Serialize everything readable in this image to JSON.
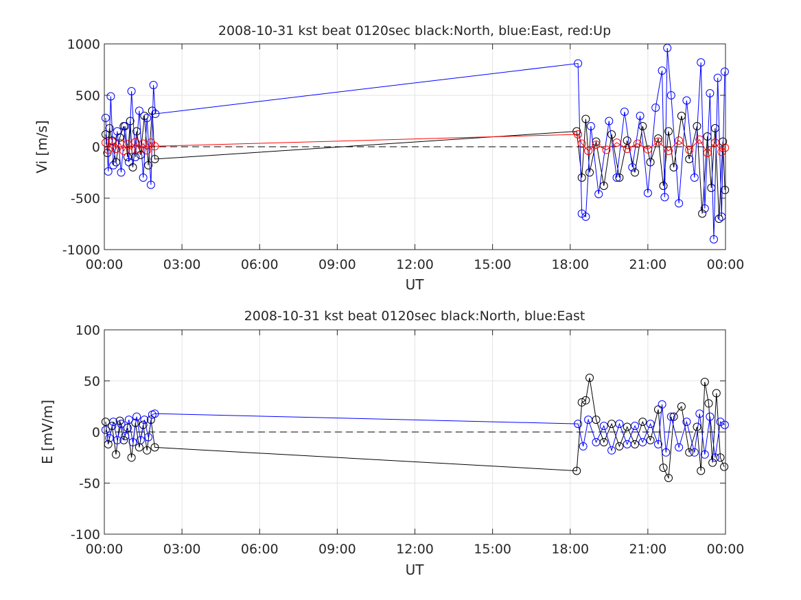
{
  "chart_data": [
    {
      "type": "scatter",
      "title": "2008-10-31 kst beat 0120sec black:North, blue:East, red:Up",
      "xlabel": "UT",
      "ylabel": "Vi [m/s]",
      "xlim_hours": [
        0,
        24
      ],
      "ylim": [
        -1000,
        1000
      ],
      "xticks": [
        0,
        3,
        6,
        9,
        12,
        15,
        18,
        21,
        24
      ],
      "xtick_labels": [
        "00:00",
        "03:00",
        "06:00",
        "09:00",
        "12:00",
        "15:00",
        "18:00",
        "21:00",
        "00:00"
      ],
      "yticks": [
        -1000,
        -500,
        0,
        500,
        1000
      ],
      "ytick_labels": [
        "-1000",
        "-500",
        "0",
        "500",
        "1000"
      ],
      "grid": true,
      "zero_line": "dashed",
      "series": [
        {
          "color": "#000000",
          "markers": "circle",
          "x_hours": [
            0.05,
            0.12,
            0.2,
            0.3,
            0.45,
            0.6,
            0.75,
            0.9,
            1.0,
            1.1,
            1.25,
            1.4,
            1.55,
            1.7,
            1.85,
            1.95,
            18.25,
            18.45,
            18.6,
            18.75,
            19.0,
            19.3,
            19.6,
            19.9,
            20.2,
            20.5,
            20.8,
            21.1,
            21.4,
            21.6,
            21.8,
            22.0,
            22.3,
            22.6,
            22.9,
            23.1,
            23.3,
            23.45,
            23.6,
            23.75,
            23.9,
            23.98
          ],
          "values": [
            120,
            -60,
            180,
            60,
            -150,
            90,
            200,
            -100,
            250,
            -200,
            150,
            -80,
            300,
            -180,
            350,
            -120,
            150,
            -300,
            270,
            -250,
            50,
            -380,
            120,
            -300,
            60,
            -250,
            200,
            -150,
            80,
            -380,
            150,
            -200,
            300,
            -120,
            200,
            -650,
            100,
            -400,
            180,
            -700,
            50,
            -420
          ]
        },
        {
          "color": "#0000ff",
          "markers": "circle",
          "x_hours": [
            0.05,
            0.15,
            0.25,
            0.35,
            0.5,
            0.65,
            0.8,
            0.95,
            1.05,
            1.2,
            1.35,
            1.5,
            1.65,
            1.8,
            1.9,
            1.97,
            18.3,
            18.45,
            18.6,
            18.8,
            19.1,
            19.5,
            19.8,
            20.1,
            20.4,
            20.7,
            21.0,
            21.3,
            21.55,
            21.65,
            21.75,
            21.9,
            22.2,
            22.5,
            22.8,
            23.05,
            23.2,
            23.4,
            23.55,
            23.7,
            23.85,
            23.97
          ],
          "values": [
            280,
            -240,
            490,
            -180,
            150,
            -250,
            200,
            -150,
            540,
            -100,
            350,
            -300,
            280,
            -370,
            600,
            320,
            810,
            -650,
            -680,
            200,
            -460,
            250,
            -300,
            340,
            -200,
            300,
            -450,
            380,
            740,
            -490,
            960,
            500,
            -550,
            450,
            -300,
            820,
            -600,
            520,
            -900,
            670,
            -680,
            730
          ]
        },
        {
          "color": "#ff0000",
          "markers": "circle",
          "x_hours": [
            0.05,
            0.15,
            0.3,
            0.45,
            0.6,
            0.75,
            0.9,
            1.05,
            1.2,
            1.35,
            1.5,
            1.65,
            1.8,
            1.95,
            18.3,
            18.45,
            18.7,
            19.0,
            19.4,
            19.8,
            20.2,
            20.6,
            21.0,
            21.4,
            21.8,
            22.2,
            22.6,
            23.0,
            23.3,
            23.6,
            23.85,
            23.98
          ],
          "values": [
            40,
            -30,
            50,
            -20,
            35,
            -40,
            25,
            -30,
            45,
            -25,
            30,
            -35,
            40,
            5,
            120,
            30,
            -40,
            20,
            -30,
            40,
            -20,
            30,
            -25,
            50,
            -40,
            60,
            -30,
            70,
            -60,
            40,
            -50,
            -10
          ]
        }
      ]
    },
    {
      "type": "scatter",
      "title": "2008-10-31 kst beat 0120sec black:North, blue:East",
      "xlabel": "UT",
      "ylabel": "E [mV/m]",
      "xlim_hours": [
        0,
        24
      ],
      "ylim": [
        -100,
        100
      ],
      "xticks": [
        0,
        3,
        6,
        9,
        12,
        15,
        18,
        21,
        24
      ],
      "xtick_labels": [
        "00:00",
        "03:00",
        "06:00",
        "09:00",
        "12:00",
        "15:00",
        "18:00",
        "21:00",
        "00:00"
      ],
      "yticks": [
        -100,
        -50,
        0,
        50,
        100
      ],
      "ytick_labels": [
        "-100",
        "-50",
        "0",
        "50",
        "100"
      ],
      "grid": true,
      "zero_line": "dashed",
      "series": [
        {
          "color": "#000000",
          "markers": "circle",
          "x_hours": [
            0.05,
            0.15,
            0.3,
            0.45,
            0.6,
            0.75,
            0.9,
            1.05,
            1.2,
            1.35,
            1.5,
            1.65,
            1.8,
            1.95,
            18.25,
            18.45,
            18.6,
            18.75,
            19.0,
            19.3,
            19.6,
            19.9,
            20.2,
            20.5,
            20.8,
            21.1,
            21.4,
            21.6,
            21.8,
            22.0,
            22.3,
            22.6,
            22.9,
            23.05,
            23.2,
            23.35,
            23.5,
            23.65,
            23.8,
            23.95
          ],
          "values": [
            10,
            -12,
            6,
            -22,
            11,
            -8,
            4,
            -25,
            9,
            -15,
            7,
            -18,
            12,
            -15,
            -38,
            29,
            31,
            53,
            12,
            -10,
            8,
            -14,
            5,
            -12,
            10,
            -8,
            22,
            -35,
            -45,
            15,
            25,
            -20,
            5,
            -38,
            49,
            28,
            -30,
            38,
            -25,
            -34
          ]
        },
        {
          "color": "#0000ff",
          "markers": "circle",
          "x_hours": [
            0.05,
            0.2,
            0.35,
            0.5,
            0.65,
            0.8,
            0.95,
            1.1,
            1.25,
            1.4,
            1.55,
            1.7,
            1.85,
            1.95,
            18.3,
            18.5,
            18.7,
            19.0,
            19.3,
            19.6,
            19.9,
            20.2,
            20.5,
            20.8,
            21.1,
            21.4,
            21.55,
            21.7,
            21.9,
            22.2,
            22.5,
            22.8,
            23.0,
            23.2,
            23.4,
            23.6,
            23.8,
            23.97
          ],
          "values": [
            2,
            -6,
            10,
            -8,
            8,
            -4,
            12,
            -10,
            15,
            -8,
            12,
            -5,
            17,
            18,
            8,
            -14,
            12,
            -10,
            6,
            -18,
            8,
            -12,
            6,
            -10,
            8,
            -12,
            27,
            -20,
            15,
            -15,
            10,
            -20,
            18,
            -22,
            15,
            -25,
            10,
            7
          ]
        }
      ]
    }
  ]
}
